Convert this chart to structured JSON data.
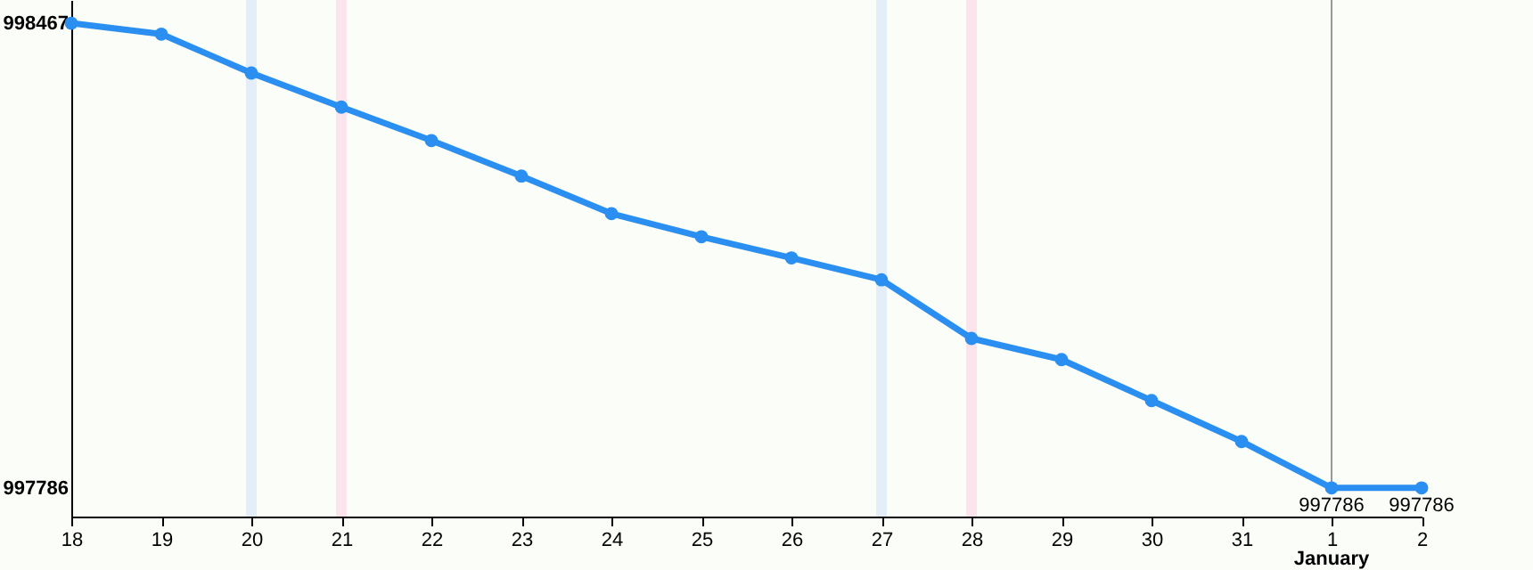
{
  "chart_data": {
    "type": "line",
    "categories": [
      "18",
      "19",
      "20",
      "21",
      "22",
      "23",
      "24",
      "25",
      "26",
      "27",
      "28",
      "29",
      "30",
      "31",
      "1",
      "2"
    ],
    "series": [
      {
        "color": "#2a8ff0",
        "values": [
          998467,
          998451,
          998394,
          998344,
          998295,
          998243,
          998188,
          998154,
          998123,
          998091,
          998005,
          997974,
          997914,
          997854,
          997786,
          997786
        ],
        "value_labels": [
          null,
          null,
          null,
          null,
          null,
          null,
          null,
          null,
          null,
          null,
          null,
          null,
          null,
          null,
          "997786",
          "997786"
        ]
      }
    ],
    "ylim": [
      997744,
      998501
    ],
    "yticks": [
      997786,
      998467
    ],
    "annotations": [
      "January"
    ],
    "ref_lines": [
      {
        "axis": "x",
        "value": "1",
        "color": "#999999",
        "line_style": "solid"
      }
    ],
    "bands": [
      {
        "axis": "x",
        "from": "20",
        "to": "20",
        "color": "#e3eef8"
      },
      {
        "axis": "x",
        "from": "21",
        "to": "21",
        "color": "#fbe4ec"
      },
      {
        "axis": "x",
        "from": "27",
        "to": "27",
        "color": "#e3eef8"
      },
      {
        "axis": "x",
        "from": "28",
        "to": "28",
        "color": "#fbe4ec"
      }
    ],
    "marker": "circle",
    "line_style": "solid",
    "grid": false
  }
}
